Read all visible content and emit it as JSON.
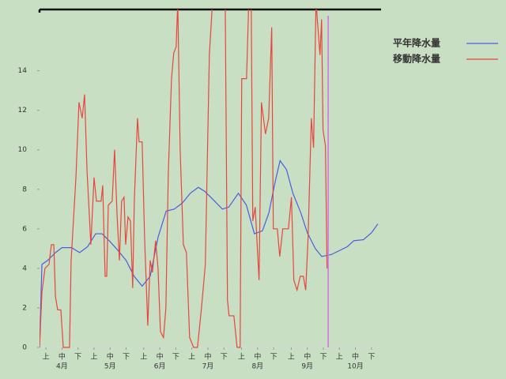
{
  "chart_data": {
    "type": "line",
    "series": [
      {
        "name": "平年降水量",
        "color": "#4a5de0",
        "x": [
          0,
          1.5,
          5,
          10,
          14,
          20,
          25,
          30,
          35,
          39,
          44,
          49,
          54,
          59,
          64,
          69,
          74,
          79,
          84,
          89,
          94,
          99,
          103,
          108,
          114,
          118,
          124,
          129,
          134,
          139,
          143,
          147,
          150,
          154,
          158,
          163,
          167,
          172,
          176,
          182,
          187,
          192,
          196,
          202,
          207,
          211
        ],
        "values": [
          0,
          4.2,
          4.4,
          4.8,
          5.05,
          5.05,
          4.8,
          5.1,
          5.75,
          5.75,
          5.35,
          4.9,
          4.4,
          3.6,
          3.1,
          3.6,
          5.6,
          6.9,
          7.0,
          7.3,
          7.8,
          8.1,
          7.9,
          7.5,
          7.0,
          7.1,
          7.8,
          7.2,
          5.75,
          5.9,
          6.8,
          8.4,
          9.45,
          9.0,
          7.8,
          6.8,
          5.8,
          5.0,
          4.6,
          4.7,
          4.9,
          5.1,
          5.4,
          5.45,
          5.8,
          6.25
        ]
      },
      {
        "name": "移動降水量",
        "color": "#e8453c",
        "x": [
          0,
          1.5,
          3.4,
          5.9,
          7.4,
          8.9,
          9.9,
          11.3,
          13.3,
          14.8,
          18.7,
          19.7,
          22.7,
          24.6,
          26.6,
          28.1,
          29.6,
          32,
          34,
          35.5,
          38.4,
          39.4,
          40.9,
          41.9,
          42.9,
          45.3,
          46.8,
          48.3,
          49.8,
          51.2,
          52.7,
          53.7,
          55.2,
          56.7,
          58.1,
          59.1,
          61.1,
          62.1,
          64,
          65.5,
          67.5,
          69,
          70.4,
          72.4,
          73.9,
          75.4,
          77.3,
          78.8,
          80.3,
          82.3,
          83.7,
          85.2,
          86.2,
          87.7,
          89.7,
          91.6,
          93.6,
          96.1,
          98.5,
          101,
          103.4,
          105.9,
          107.9,
          115.8,
          117.2,
          118.2,
          121.2,
          123.2,
          125.1,
          126.1,
          129.1,
          130.5,
          132,
          133,
          134.5,
          136.9,
          138.4,
          140.9,
          142.9,
          144.8,
          145.8,
          148.3,
          149.8,
          151.7,
          155.2,
          157.1,
          158.6,
          160.6,
          162.6,
          164.5,
          166,
          167.5,
          169.5,
          170.9,
          172.4,
          174.9,
          175.9,
          176.8,
          178.3,
          179.3
        ],
        "values": [
          0,
          2.8,
          4,
          4.2,
          5.2,
          5.2,
          2.6,
          1.9,
          1.9,
          0,
          0,
          4.4,
          8.6,
          12.4,
          11.6,
          12.8,
          9.0,
          5.2,
          8.6,
          7.4,
          7.4,
          8.2,
          3.6,
          3.6,
          7.2,
          7.4,
          10,
          6.8,
          4.4,
          7.4,
          7.6,
          5.2,
          6.6,
          6.4,
          3,
          7.4,
          11.6,
          10.4,
          10.4,
          5.6,
          1.1,
          4.4,
          3.8,
          5.4,
          4,
          0.8,
          0.5,
          2,
          8.8,
          13.6,
          14.9,
          15.2,
          17.5,
          10,
          5.2,
          4.8,
          0.5,
          0,
          0,
          2,
          4.2,
          14.8,
          17.5,
          17.5,
          2.4,
          1.6,
          1.6,
          0,
          0,
          13.6,
          13.6,
          17.5,
          17.5,
          6.4,
          7.1,
          3.4,
          12.4,
          10.8,
          11.6,
          16.2,
          6,
          6,
          4.6,
          6,
          6,
          7.6,
          3.4,
          2.9,
          3.6,
          3.6,
          2.9,
          5.6,
          11.6,
          10.1,
          17.5,
          14.8,
          16.6,
          11,
          10.2,
          4.0
        ]
      }
    ],
    "xlim": [
      0,
      213
    ],
    "ylim": [
      0,
      17.1
    ],
    "yticks": [
      0,
      2,
      4,
      6,
      8,
      10,
      12,
      14
    ],
    "xticks": [
      {
        "value": 4,
        "label": "上"
      },
      {
        "value": 14,
        "label": "中"
      },
      {
        "value": 24,
        "label": "下"
      },
      {
        "value": 34,
        "label": "上"
      },
      {
        "value": 44,
        "label": "中"
      },
      {
        "value": 54,
        "label": "下"
      },
      {
        "value": 65,
        "label": "上"
      },
      {
        "value": 75,
        "label": "中"
      },
      {
        "value": 85,
        "label": "下"
      },
      {
        "value": 95,
        "label": "上"
      },
      {
        "value": 105,
        "label": "中"
      },
      {
        "value": 115,
        "label": "下"
      },
      {
        "value": 126,
        "label": "上"
      },
      {
        "value": 136,
        "label": "中"
      },
      {
        "value": 146,
        "label": "下"
      },
      {
        "value": 157,
        "label": "上"
      },
      {
        "value": 167,
        "label": "中"
      },
      {
        "value": 177,
        "label": "下"
      },
      {
        "value": 187,
        "label": "上"
      },
      {
        "value": 197,
        "label": "中"
      },
      {
        "value": 207,
        "label": "下"
      }
    ],
    "month_labels": [
      {
        "value": 14,
        "label": "4月"
      },
      {
        "value": 44,
        "label": "5月"
      },
      {
        "value": 75,
        "label": "6月"
      },
      {
        "value": 105,
        "label": "7月"
      },
      {
        "value": 136,
        "label": "8月"
      },
      {
        "value": 167,
        "label": "9月"
      },
      {
        "value": 197,
        "label": "10月"
      }
    ],
    "marker_x": 180,
    "marker_color": "#d070e0",
    "legend": "top-right"
  }
}
